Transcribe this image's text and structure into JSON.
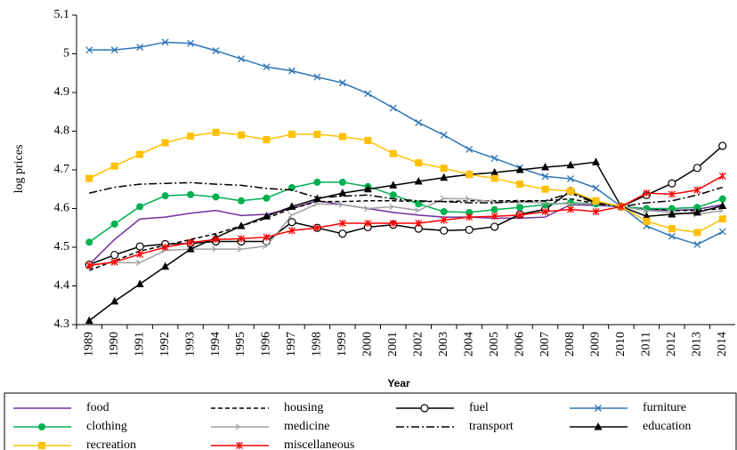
{
  "chart_data": {
    "type": "line",
    "x_label": "Year",
    "y_label": "log prices",
    "categories": [
      "1989",
      "1990",
      "1991",
      "1992",
      "1993",
      "1994",
      "1995",
      "1996",
      "1997",
      "1998",
      "1999",
      "2000",
      "2001",
      "2002",
      "2003",
      "2004",
      "2005",
      "2006",
      "2007",
      "2008",
      "2009",
      "2010",
      "2011",
      "2012",
      "2013",
      "2014"
    ],
    "ylim": [
      4.3,
      5.1
    ],
    "yticks": [
      4.3,
      4.4,
      4.5,
      4.6,
      4.7,
      4.8,
      4.9,
      5,
      5.1
    ],
    "legend": "bottom",
    "series": [
      {
        "name": "food",
        "color": "#7030a0",
        "dash": "solid",
        "marker": "none",
        "values": [
          4.455,
          4.52,
          4.573,
          4.578,
          4.588,
          4.595,
          4.582,
          4.585,
          4.6,
          4.62,
          4.61,
          4.6,
          4.59,
          4.583,
          4.578,
          4.578,
          4.575,
          4.575,
          4.578,
          4.61,
          4.608,
          4.605,
          4.598,
          4.595,
          4.598,
          4.61
        ]
      },
      {
        "name": "housing",
        "color": "#000000",
        "dash": "dashed",
        "marker": "none",
        "values": [
          4.44,
          4.465,
          4.49,
          4.505,
          4.52,
          4.535,
          4.555,
          4.575,
          4.6,
          4.618,
          4.618,
          4.62,
          4.62,
          4.618,
          4.618,
          4.62,
          4.62,
          4.62,
          4.62,
          4.625,
          4.613,
          4.605,
          4.6,
          4.595,
          4.595,
          4.6
        ]
      },
      {
        "name": "fuel",
        "color": "#000000",
        "dash": "solid",
        "marker": "open-circle",
        "values": [
          4.455,
          4.48,
          4.502,
          4.508,
          4.51,
          4.515,
          4.515,
          4.515,
          4.565,
          4.55,
          4.535,
          4.552,
          4.558,
          4.548,
          4.543,
          4.545,
          4.553,
          4.585,
          4.598,
          4.645,
          4.615,
          4.605,
          4.635,
          4.665,
          4.705,
          4.762
        ]
      },
      {
        "name": "furniture",
        "color": "#2e75b6",
        "dash": "solid",
        "marker": "cross",
        "values": [
          5.01,
          5.01,
          5.017,
          5.03,
          5.027,
          5.008,
          4.987,
          4.966,
          4.956,
          4.94,
          4.925,
          4.897,
          4.86,
          4.822,
          4.79,
          4.753,
          4.73,
          4.705,
          4.683,
          4.677,
          4.653,
          4.605,
          4.555,
          4.528,
          4.507,
          4.54
        ]
      },
      {
        "name": "clothing",
        "color": "#00b050",
        "dash": "solid",
        "marker": "circle",
        "values": [
          4.513,
          4.56,
          4.605,
          4.633,
          4.636,
          4.63,
          4.62,
          4.627,
          4.654,
          4.668,
          4.668,
          4.657,
          4.635,
          4.612,
          4.592,
          4.59,
          4.597,
          4.603,
          4.61,
          4.615,
          4.612,
          4.605,
          4.6,
          4.6,
          4.603,
          4.625
        ]
      },
      {
        "name": "medicine",
        "color": "#a0a0a0",
        "dash": "solid",
        "marker": "arrow",
        "values": [
          4.455,
          4.46,
          4.46,
          4.492,
          4.495,
          4.495,
          4.495,
          4.503,
          4.583,
          4.612,
          4.61,
          4.6,
          4.605,
          4.595,
          4.626,
          4.625,
          4.617,
          4.617,
          4.614,
          4.612,
          4.612,
          4.605,
          4.595,
          4.59,
          4.585,
          4.595
        ]
      },
      {
        "name": "transport",
        "color": "#000000",
        "dash": "dashdot",
        "marker": "none",
        "values": [
          4.64,
          4.655,
          4.663,
          4.665,
          4.667,
          4.663,
          4.66,
          4.652,
          4.648,
          4.628,
          4.632,
          4.635,
          4.625,
          4.62,
          4.618,
          4.615,
          4.615,
          4.618,
          4.62,
          4.64,
          4.613,
          4.605,
          4.615,
          4.62,
          4.635,
          4.655
        ]
      },
      {
        "name": "education",
        "color": "#000000",
        "dash": "solid",
        "marker": "triangle",
        "values": [
          4.31,
          4.36,
          4.405,
          4.45,
          4.495,
          4.525,
          4.555,
          4.58,
          4.605,
          4.625,
          4.64,
          4.65,
          4.66,
          4.67,
          4.68,
          4.688,
          4.693,
          4.7,
          4.707,
          4.712,
          4.72,
          4.605,
          4.58,
          4.585,
          4.59,
          4.607
        ]
      },
      {
        "name": "recreation",
        "color": "#ffc000",
        "dash": "solid",
        "marker": "square",
        "values": [
          4.678,
          4.71,
          4.74,
          4.77,
          4.787,
          4.797,
          4.79,
          4.778,
          4.792,
          4.792,
          4.786,
          4.776,
          4.742,
          4.718,
          4.704,
          4.688,
          4.678,
          4.663,
          4.65,
          4.645,
          4.62,
          4.605,
          4.567,
          4.548,
          4.538,
          4.573
        ]
      },
      {
        "name": "miscellaneous",
        "color": "#ff0000",
        "dash": "solid",
        "marker": "asterisk",
        "values": [
          4.453,
          4.462,
          4.482,
          4.5,
          4.512,
          4.52,
          4.522,
          4.526,
          4.543,
          4.55,
          4.562,
          4.562,
          4.562,
          4.562,
          4.57,
          4.578,
          4.58,
          4.583,
          4.592,
          4.598,
          4.592,
          4.605,
          4.64,
          4.637,
          4.648,
          4.684
        ]
      }
    ]
  }
}
